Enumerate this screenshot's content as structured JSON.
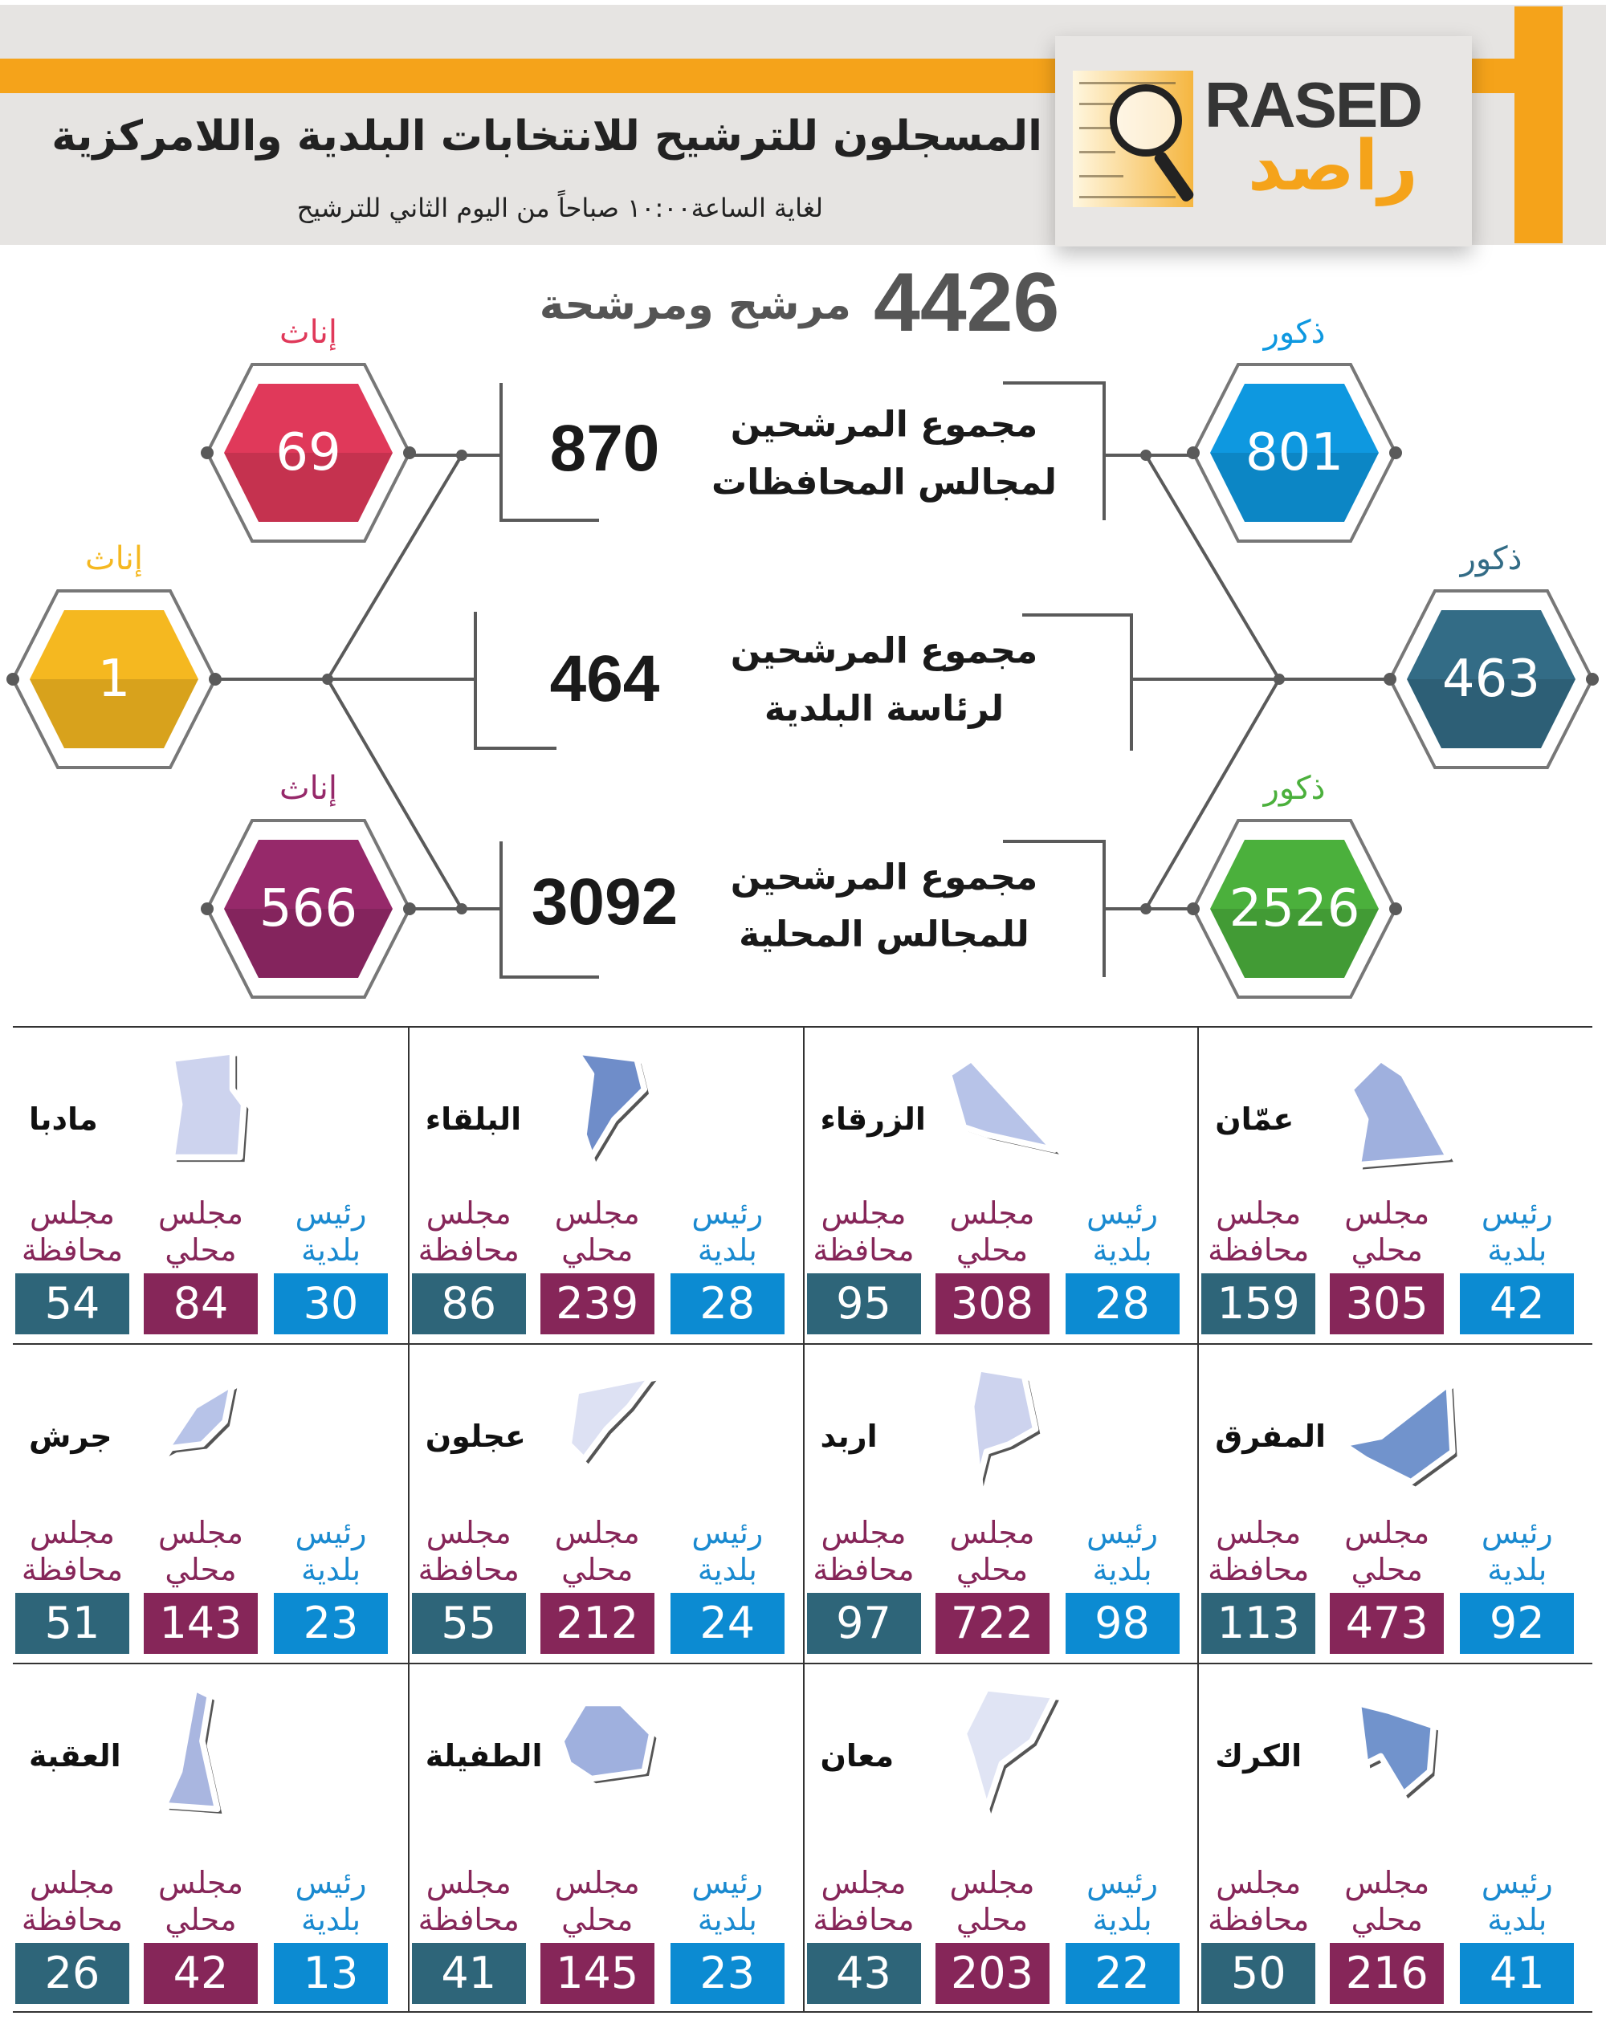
{
  "header": {
    "title": "المسجلون للترشيح للانتخابات البلدية واللامركزية",
    "subtitle": "لغاية الساعة١٠:٠٠ صباحاً من اليوم الثاني للترشيح",
    "logo_en": "RASED",
    "logo_ar": "راصد",
    "accent_color": "#f5a31a"
  },
  "total": {
    "value": "4426",
    "label": "مرشح ومرشحة"
  },
  "groups": [
    {
      "value": "870",
      "line1": "مجموع المرشحين",
      "line2": "لمجالس المحافظات",
      "female": {
        "label": "إناث",
        "value": "69",
        "color": "#e0395a"
      },
      "male": {
        "label": "ذكور",
        "value": "801",
        "color": "#0e98e0"
      }
    },
    {
      "value": "464",
      "line1": "مجموع المرشحين",
      "line2": "لرئاسة البلدية",
      "female": {
        "label": "إناث",
        "value": "1",
        "color": "#f5b820"
      },
      "male": {
        "label": "ذكور",
        "value": "463",
        "color": "#336c86"
      }
    },
    {
      "value": "3092",
      "line1": "مجموع المرشحين",
      "line2": "للمجالس المحلية",
      "female": {
        "label": "إناث",
        "value": "566",
        "color": "#96296a"
      },
      "male": {
        "label": "ذكور",
        "value": "2526",
        "color": "#4bb03c"
      }
    }
  ],
  "stat_labels": {
    "mayor": [
      "رئيس",
      "بلدية"
    ],
    "local": [
      "مجلس",
      "محلي"
    ],
    "governorate": [
      "مجلس",
      "محافظة"
    ]
  },
  "stat_colors": {
    "mayor": "#0c8bd2",
    "local": "#862659",
    "governorate": "#2e6579"
  },
  "regions": [
    {
      "name": "عمّان",
      "mayor": "42",
      "local": "305",
      "governorate": "159"
    },
    {
      "name": "الزرقاء",
      "mayor": "28",
      "local": "308",
      "governorate": "95"
    },
    {
      "name": "البلقاء",
      "mayor": "28",
      "local": "239",
      "governorate": "86"
    },
    {
      "name": "مادبا",
      "mayor": "30",
      "local": "84",
      "governorate": "54"
    },
    {
      "name": "المفرق",
      "mayor": "92",
      "local": "473",
      "governorate": "113"
    },
    {
      "name": "اربد",
      "mayor": "98",
      "local": "722",
      "governorate": "97"
    },
    {
      "name": "عجلون",
      "mayor": "24",
      "local": "212",
      "governorate": "55"
    },
    {
      "name": "جرش",
      "mayor": "23",
      "local": "143",
      "governorate": "51"
    },
    {
      "name": "الكرك",
      "mayor": "41",
      "local": "216",
      "governorate": "50"
    },
    {
      "name": "معان",
      "mayor": "22",
      "local": "203",
      "governorate": "43"
    },
    {
      "name": "الطفيلة",
      "mayor": "23",
      "local": "145",
      "governorate": "41"
    },
    {
      "name": "العقبة",
      "mayor": "13",
      "local": "42",
      "governorate": "26"
    }
  ]
}
